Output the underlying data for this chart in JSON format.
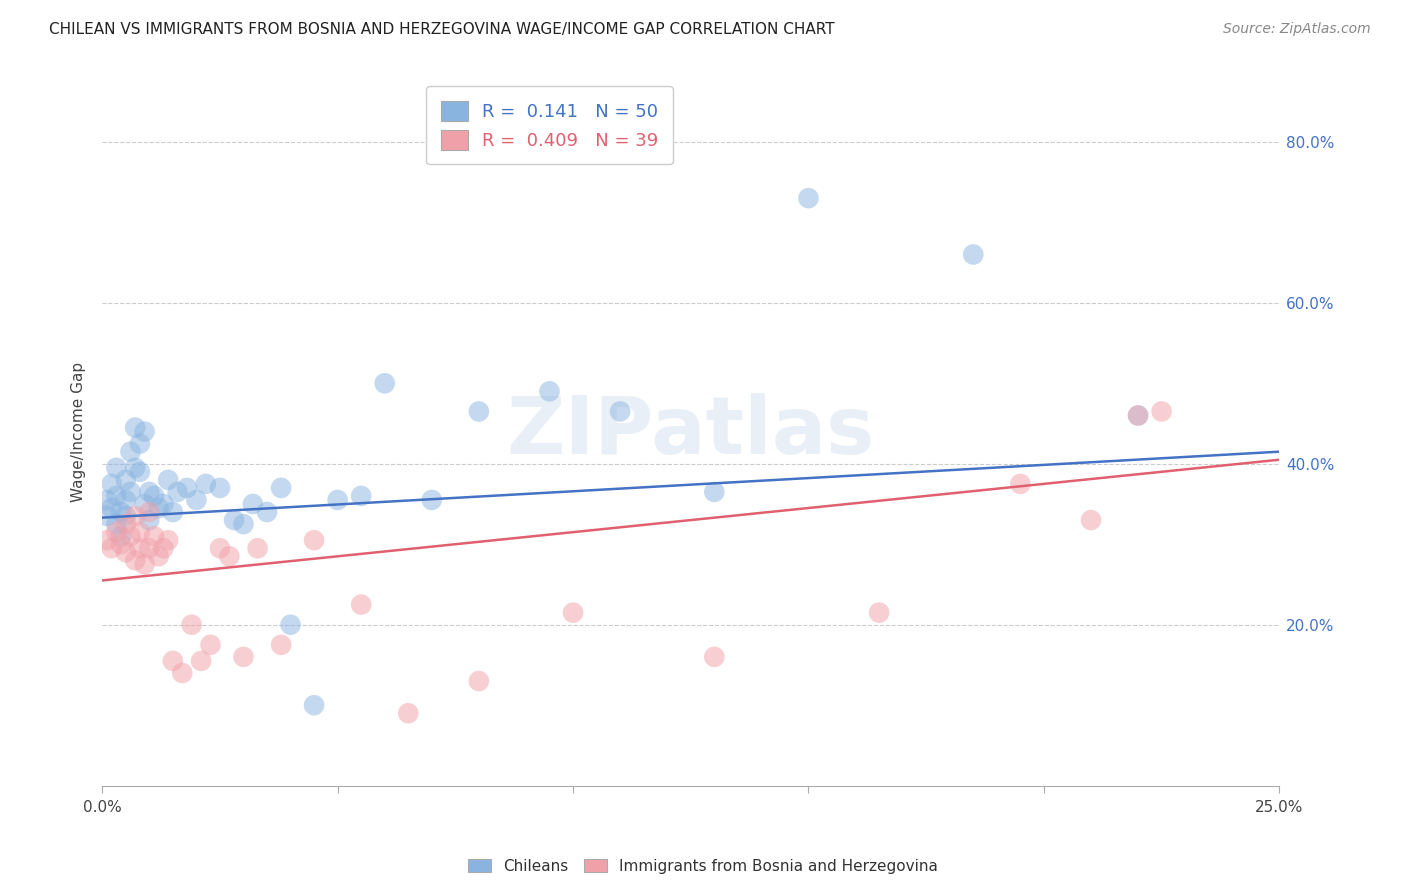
{
  "title": "CHILEAN VS IMMIGRANTS FROM BOSNIA AND HERZEGOVINA WAGE/INCOME GAP CORRELATION CHART",
  "source": "Source: ZipAtlas.com",
  "ylabel": "Wage/Income Gap",
  "legend_chileans_R": "0.141",
  "legend_chileans_N": "50",
  "legend_immigrants_R": "0.409",
  "legend_immigrants_N": "39",
  "blue_color": "#8ab4e0",
  "pink_color": "#f0a0a8",
  "blue_line_color": "#4472c4",
  "pink_line_color": "#e06070",
  "watermark_text": "ZIPatlas",
  "xmin": 0.0,
  "xmax": 0.25,
  "ymin": 0.0,
  "ymax": 0.88,
  "blue_line": [
    0.333,
    0.415
  ],
  "pink_line": [
    0.255,
    0.405
  ],
  "blue_scatter_x": [
    0.001,
    0.001,
    0.002,
    0.002,
    0.003,
    0.003,
    0.003,
    0.004,
    0.004,
    0.005,
    0.005,
    0.005,
    0.006,
    0.006,
    0.007,
    0.007,
    0.008,
    0.008,
    0.009,
    0.009,
    0.01,
    0.01,
    0.011,
    0.012,
    0.013,
    0.014,
    0.015,
    0.016,
    0.018,
    0.02,
    0.022,
    0.025,
    0.028,
    0.03,
    0.032,
    0.035,
    0.038,
    0.04,
    0.045,
    0.05,
    0.055,
    0.06,
    0.07,
    0.08,
    0.095,
    0.11,
    0.13,
    0.15,
    0.185,
    0.22
  ],
  "blue_scatter_y": [
    0.335,
    0.355,
    0.345,
    0.375,
    0.36,
    0.325,
    0.395,
    0.34,
    0.31,
    0.38,
    0.355,
    0.335,
    0.415,
    0.365,
    0.445,
    0.395,
    0.39,
    0.425,
    0.44,
    0.35,
    0.365,
    0.33,
    0.36,
    0.345,
    0.35,
    0.38,
    0.34,
    0.365,
    0.37,
    0.355,
    0.375,
    0.37,
    0.33,
    0.325,
    0.35,
    0.34,
    0.37,
    0.2,
    0.1,
    0.355,
    0.36,
    0.5,
    0.355,
    0.465,
    0.49,
    0.465,
    0.365,
    0.73,
    0.66,
    0.46
  ],
  "pink_scatter_x": [
    0.001,
    0.002,
    0.003,
    0.004,
    0.005,
    0.005,
    0.006,
    0.007,
    0.007,
    0.008,
    0.008,
    0.009,
    0.01,
    0.01,
    0.011,
    0.012,
    0.013,
    0.014,
    0.015,
    0.017,
    0.019,
    0.021,
    0.023,
    0.025,
    0.027,
    0.03,
    0.033,
    0.038,
    0.045,
    0.055,
    0.065,
    0.08,
    0.1,
    0.13,
    0.165,
    0.195,
    0.21,
    0.22,
    0.225
  ],
  "pink_scatter_y": [
    0.305,
    0.295,
    0.315,
    0.3,
    0.29,
    0.325,
    0.31,
    0.28,
    0.335,
    0.295,
    0.315,
    0.275,
    0.34,
    0.295,
    0.31,
    0.285,
    0.295,
    0.305,
    0.155,
    0.14,
    0.2,
    0.155,
    0.175,
    0.295,
    0.285,
    0.16,
    0.295,
    0.175,
    0.305,
    0.225,
    0.09,
    0.13,
    0.215,
    0.16,
    0.215,
    0.375,
    0.33,
    0.46,
    0.465
  ]
}
